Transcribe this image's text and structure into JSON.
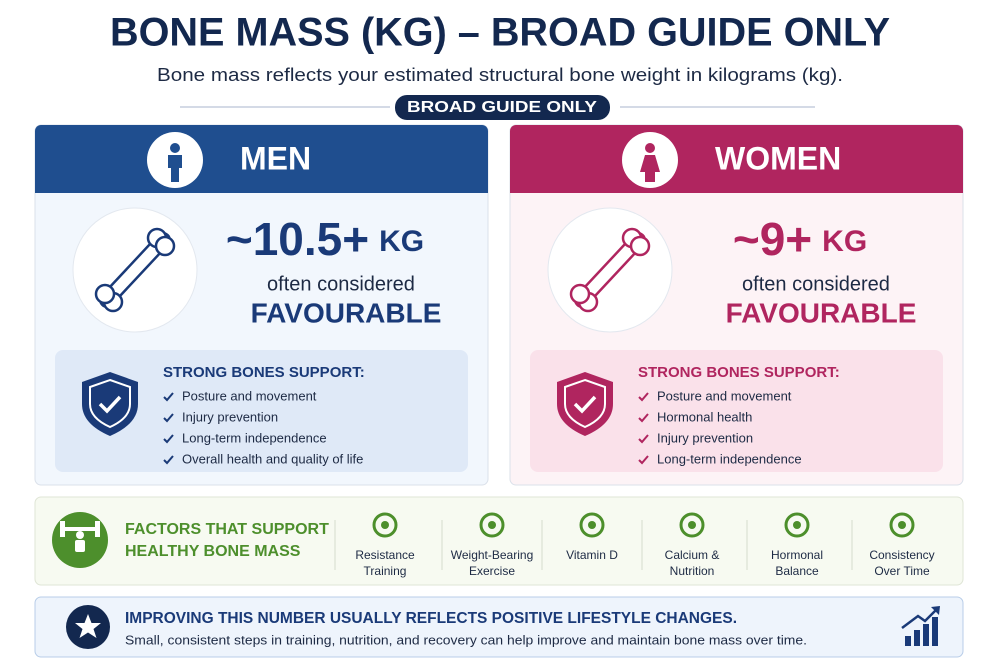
{
  "header": {
    "title": "BONE MASS (KG) – BROAD GUIDE ONLY",
    "subtitle": "Bone mass reflects your estimated structural bone weight in kilograms (kg).",
    "badge": "BROAD GUIDE ONLY"
  },
  "panels": [
    {
      "heading": "MEN",
      "value": "~10.5+",
      "unit": "KG",
      "caption": "often considered",
      "verdict": "FAVOURABLE",
      "support_title": "STRONG BONES SUPPORT:",
      "items": [
        "Posture and movement",
        "Injury prevention",
        "Long-term independence",
        "Overall health and quality of life"
      ]
    },
    {
      "heading": "WOMEN",
      "value": "~9+",
      "unit": "KG",
      "caption": "often considered",
      "verdict": "FAVOURABLE",
      "support_title": "STRONG BONES SUPPORT:",
      "items": [
        "Posture and movement",
        "Hormonal health",
        "Injury prevention",
        "Long-term independence"
      ]
    }
  ],
  "factors": {
    "title": [
      "FACTORS THAT SUPPORT",
      "HEALTHY BONE MASS"
    ],
    "items": [
      [
        "Resistance",
        "Training"
      ],
      [
        "Weight-Bearing",
        "Exercise"
      ],
      [
        "Vitamin D"
      ],
      [
        "Calcium &",
        "Nutrition"
      ],
      [
        "Hormonal",
        "Balance"
      ],
      [
        "Consistency",
        "Over Time"
      ]
    ]
  },
  "footer": {
    "heading": "IMPROVING THIS NUMBER USUALLY REFLECTS POSITIVE LIFESTYLE CHANGES.",
    "text": "Small, consistent steps in training, nutrition, and recovery can help improve and maintain bone mass over time."
  }
}
